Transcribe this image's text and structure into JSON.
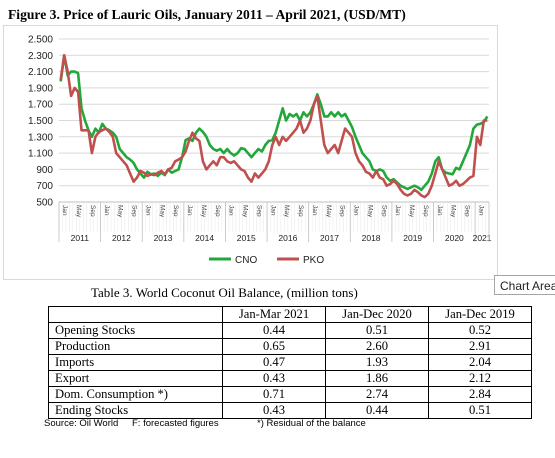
{
  "figure_title": "Figure 3. Price of Lauric Oils, January 2011 – April 2021, (USD/MT)",
  "tooltip_label": "Chart Area",
  "chart_data": {
    "type": "line",
    "title": "",
    "xlabel": "",
    "ylabel": "",
    "ylim": [
      500,
      2500
    ],
    "y_ticks": [
      "2.500",
      "2.300",
      "2.100",
      "1.900",
      "1.700",
      "1.500",
      "1.300",
      "1.100",
      "900",
      "700",
      "500"
    ],
    "month_labels": [
      "Jan",
      "May",
      "Sep"
    ],
    "year_labels": [
      "2011",
      "2012",
      "2013",
      "2014",
      "2015",
      "2016",
      "2017",
      "2018",
      "2019",
      "2020",
      "2021"
    ],
    "x_start": "2011-01",
    "x_end": "2021-04",
    "legend_position": "bottom",
    "colors": {
      "CNO": "#22a83a",
      "PKO": "#c0504d"
    },
    "series": [
      {
        "name": "CNO",
        "values": [
          1980,
          2300,
          2050,
          2100,
          2100,
          2080,
          1650,
          1500,
          1380,
          1300,
          1400,
          1350,
          1460,
          1400,
          1380,
          1350,
          1300,
          1150,
          1100,
          1050,
          1020,
          980,
          900,
          850,
          800,
          870,
          840,
          850,
          820,
          860,
          830,
          900,
          860,
          880,
          900,
          1050,
          1260,
          1280,
          1250,
          1350,
          1400,
          1360,
          1300,
          1200,
          1150,
          1130,
          1150,
          1100,
          1150,
          1100,
          1070,
          1100,
          1160,
          1150,
          1100,
          1050,
          1100,
          1150,
          1120,
          1200,
          1250,
          1260,
          1350,
          1500,
          1650,
          1500,
          1580,
          1550,
          1580,
          1500,
          1600,
          1550,
          1600,
          1700,
          1820,
          1700,
          1550,
          1550,
          1600,
          1550,
          1600,
          1550,
          1580,
          1500,
          1420,
          1300,
          1200,
          1100,
          1050,
          1000,
          900,
          880,
          900,
          880,
          800,
          760,
          780,
          740,
          700,
          680,
          660,
          680,
          700,
          680,
          650,
          700,
          750,
          850,
          1000,
          1050,
          900,
          860,
          850,
          840,
          920,
          900,
          1000,
          1100,
          1200,
          1400,
          1450,
          1460,
          1480,
          1550
        ]
      },
      {
        "name": "PKO",
        "values": [
          2000,
          2300,
          2100,
          1800,
          1900,
          1850,
          1380,
          1380,
          1380,
          1100,
          1300,
          1360,
          1380,
          1400,
          1360,
          1300,
          1100,
          1050,
          1000,
          950,
          850,
          750,
          800,
          880,
          860,
          820,
          840,
          830,
          860,
          880,
          840,
          900,
          920,
          1000,
          1020,
          1050,
          1120,
          1250,
          1350,
          1280,
          1250,
          1000,
          900,
          950,
          1000,
          950,
          1050,
          1050,
          1000,
          980,
          1000,
          950,
          900,
          880,
          800,
          750,
          850,
          800,
          850,
          900,
          1000,
          1200,
          1300,
          1200,
          1300,
          1250,
          1300,
          1350,
          1400,
          1500,
          1350,
          1400,
          1500,
          1700,
          1800,
          1500,
          1200,
          1100,
          1150,
          1200,
          1100,
          1250,
          1400,
          1350,
          1300,
          1100,
          1000,
          950,
          870,
          850,
          800,
          880,
          800,
          780,
          700,
          720,
          760,
          720,
          650,
          600,
          580,
          600,
          650,
          620,
          580,
          560,
          600,
          700,
          850,
          1000,
          900,
          800,
          700,
          720,
          760,
          700,
          720,
          760,
          800,
          820,
          1300,
          1200,
          1500,
          1500
        ]
      }
    ]
  },
  "table": {
    "title": "Table 3. World Coconut Oil Balance, (million tons)",
    "headers": [
      "",
      "Jan-Mar 2021",
      "Jan-Dec 2020",
      "Jan-Dec 2019"
    ],
    "rows": [
      [
        "Opening Stocks",
        "0.44",
        "0.51",
        "0.52"
      ],
      [
        "Production",
        "0.65",
        "2.60",
        "2.91"
      ],
      [
        "Imports",
        "0.47",
        "1.93",
        "2.04"
      ],
      [
        "Export",
        "0.43",
        "1.86",
        "2.12"
      ],
      [
        "Dom. Consumption *)",
        "0.71",
        "2.74",
        "2.84"
      ],
      [
        "Ending Stocks",
        "0.43",
        "0.44",
        "0.51"
      ]
    ]
  },
  "footnotes": {
    "source": "Source: Oil World",
    "forecast": "F: forecasted figures",
    "residual": "*) Residual of the balance"
  }
}
